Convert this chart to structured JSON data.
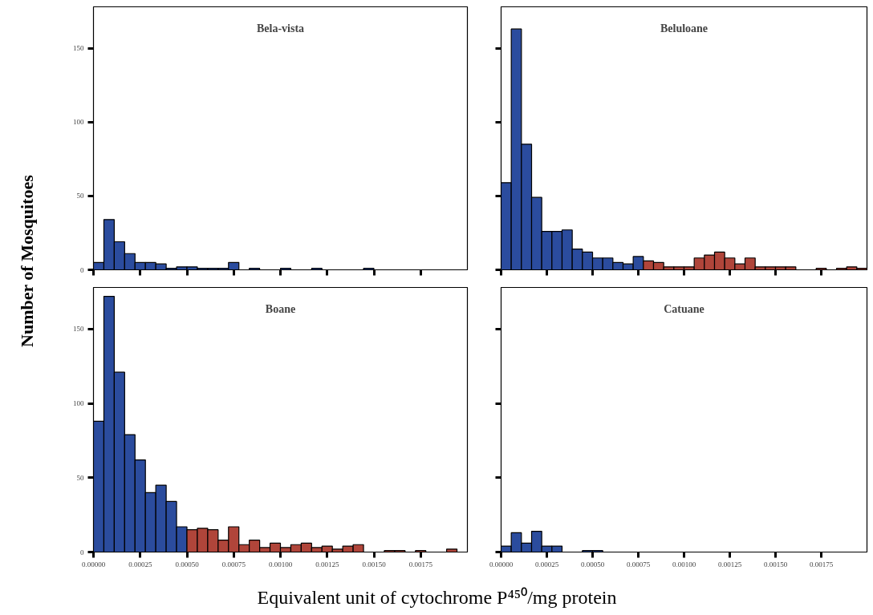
{
  "chart_data": [
    {
      "type": "histogram",
      "title": "Bela-vista",
      "ylabel": "Number of Mosquitoes",
      "tick_labels": "y",
      "bins": [
        0,
        5.56e-05,
        0.0001111,
        0.0001667,
        0.0002222,
        0.0002778,
        0.0003333,
        0.0003889,
        0.0004444,
        0.0005,
        0.0005556,
        0.0006111,
        0.0006667,
        0.0007222,
        0.0007778,
        0.0008333,
        0.0008889,
        0.0009444,
        0.001,
        0.0010556,
        0.0011111,
        0.0011667,
        0.0012222,
        0.0012778,
        0.0013333,
        0.0013889,
        0.0014444,
        0.0015,
        0.0015556,
        0.0016111,
        0.0016667,
        0.0017222,
        0.0017778,
        0.0018333,
        0.0018889,
        0.0019444,
        0.002
      ],
      "values": [
        5,
        34,
        19,
        11,
        5,
        5,
        4,
        1,
        2,
        2,
        1,
        1,
        1,
        5,
        0,
        1,
        0,
        0,
        1,
        0,
        0,
        1,
        0,
        0,
        0,
        0,
        1,
        0,
        0,
        0,
        0,
        0,
        0,
        0,
        0,
        0
      ],
      "colors": [
        "#2b4c9e",
        "#2b4c9e",
        "#2b4c9e",
        "#2b4c9e",
        "#2b4c9e",
        "#2b4c9e",
        "#2b4c9e",
        "#2b4c9e",
        "#2b4c9e",
        "#2b4c9e",
        "#2b4c9e",
        "#2b4c9e",
        "#2b4c9e",
        "#2b4c9e",
        "#2b4c9e",
        "#2b4c9e",
        "#2b4c9e",
        "#2b4c9e",
        "#2b4c9e",
        "#2b4c9e",
        "#2b4c9e",
        "#2b4c9e",
        "#2b4c9e",
        "#2b4c9e",
        "#2b4c9e",
        "#2b4c9e",
        "#2b4c9e",
        "#2b4c9e",
        "#2b4c9e",
        "#2b4c9e",
        "#2b4c9e",
        "#2b4c9e",
        "#2b4c9e",
        "#2b4c9e",
        "#2b4c9e",
        "#2b4c9e"
      ],
      "xlim": [
        0,
        0.002
      ],
      "ylim": [
        0,
        178
      ],
      "yticks": [
        0,
        50,
        100,
        150
      ],
      "xticks": [
        {
          "value": 0,
          "label": null
        },
        {
          "value": 0.00025,
          "label": null
        },
        {
          "value": 0.0005,
          "label": null
        },
        {
          "value": 0.00075,
          "label": null
        },
        {
          "value": 0.001,
          "label": null
        },
        {
          "value": 0.00125,
          "label": null
        },
        {
          "value": 0.0015,
          "label": null
        },
        {
          "value": 0.00175,
          "label": null
        }
      ]
    },
    {
      "type": "histogram",
      "title": "Beluloane",
      "tick_labels": false,
      "bins": [
        0,
        5.56e-05,
        0.0001111,
        0.0001667,
        0.0002222,
        0.0002778,
        0.0003333,
        0.0003889,
        0.0004444,
        0.0005,
        0.0005556,
        0.0006111,
        0.0006667,
        0.0007222,
        0.0007778,
        0.0008333,
        0.0008889,
        0.0009444,
        0.001,
        0.0010556,
        0.0011111,
        0.0011667,
        0.0012222,
        0.0012778,
        0.0013333,
        0.0013889,
        0.0014444,
        0.0015,
        0.0015556,
        0.0016111,
        0.0016667,
        0.0017222,
        0.0017778,
        0.0018333,
        0.0018889,
        0.0019444,
        0.002
      ],
      "values": [
        59,
        163,
        85,
        49,
        26,
        26,
        27,
        14,
        12,
        8,
        8,
        5,
        4,
        9,
        6,
        5,
        2,
        2,
        2,
        8,
        10,
        12,
        8,
        4,
        8,
        2,
        2,
        2,
        2,
        0,
        0,
        1,
        0,
        1,
        2,
        1
      ],
      "colors": [
        "#2b4c9e",
        "#2b4c9e",
        "#2b4c9e",
        "#2b4c9e",
        "#2b4c9e",
        "#2b4c9e",
        "#2b4c9e",
        "#2b4c9e",
        "#2b4c9e",
        "#2b4c9e",
        "#2b4c9e",
        "#2b4c9e",
        "#2b4c9e",
        "#2b4c9e",
        "#b0453a",
        "#b0453a",
        "#b0453a",
        "#b0453a",
        "#b0453a",
        "#b0453a",
        "#b0453a",
        "#b0453a",
        "#b0453a",
        "#b0453a",
        "#b0453a",
        "#b0453a",
        "#b0453a",
        "#b0453a",
        "#b0453a",
        "#b0453a",
        "#b0453a",
        "#b0453a",
        "#b0453a",
        "#b0453a",
        "#b0453a",
        "#b0453a"
      ],
      "xlim": [
        0,
        0.002
      ],
      "ylim": [
        0,
        178
      ],
      "yticks": [
        {
          "value": 0,
          "label": null
        },
        {
          "value": 50,
          "label": null
        },
        {
          "value": 100,
          "label": null
        },
        {
          "value": 150,
          "label": null
        }
      ],
      "xticks": [
        {
          "value": 0,
          "label": null
        },
        {
          "value": 0.00025,
          "label": null
        },
        {
          "value": 0.0005,
          "label": null
        },
        {
          "value": 0.00075,
          "label": null
        },
        {
          "value": 0.001,
          "label": null
        },
        {
          "value": 0.00125,
          "label": null
        },
        {
          "value": 0.0015,
          "label": null
        },
        {
          "value": 0.00175,
          "label": null
        }
      ]
    },
    {
      "type": "histogram",
      "title": "Boane",
      "xlabel": "Equivalent unit of cytochrome P⁴⁵⁰/mg protein",
      "bins": [
        0,
        5.56e-05,
        0.0001111,
        0.0001667,
        0.0002222,
        0.0002778,
        0.0003333,
        0.0003889,
        0.0004444,
        0.0005,
        0.0005556,
        0.0006111,
        0.0006667,
        0.0007222,
        0.0007778,
        0.0008333,
        0.0008889,
        0.0009444,
        0.001,
        0.0010556,
        0.0011111,
        0.0011667,
        0.0012222,
        0.0012778,
        0.0013333,
        0.0013889,
        0.0014444,
        0.0015,
        0.0015556,
        0.0016111,
        0.0016667,
        0.0017222,
        0.0017778,
        0.0018333,
        0.0018889,
        0.0019444,
        0.002
      ],
      "values": [
        88,
        172,
        121,
        79,
        62,
        40,
        45,
        34,
        17,
        15,
        16,
        15,
        8,
        17,
        5,
        8,
        3,
        6,
        3,
        5,
        6,
        3,
        4,
        2,
        4,
        5,
        0,
        0,
        1,
        1,
        0,
        1,
        0,
        0,
        2,
        0
      ],
      "colors": [
        "#2b4c9e",
        "#2b4c9e",
        "#2b4c9e",
        "#2b4c9e",
        "#2b4c9e",
        "#2b4c9e",
        "#2b4c9e",
        "#2b4c9e",
        "#2b4c9e",
        "#b0453a",
        "#b0453a",
        "#b0453a",
        "#b0453a",
        "#b0453a",
        "#b0453a",
        "#b0453a",
        "#b0453a",
        "#b0453a",
        "#b0453a",
        "#b0453a",
        "#b0453a",
        "#b0453a",
        "#b0453a",
        "#b0453a",
        "#b0453a",
        "#b0453a",
        "#b0453a",
        "#b0453a",
        "#b0453a",
        "#b0453a",
        "#b0453a",
        "#b0453a",
        "#b0453a",
        "#b0453a",
        "#b0453a",
        "#b0453a"
      ],
      "xlim": [
        0,
        0.002
      ],
      "ylim": [
        0,
        178
      ],
      "yticks": [
        0,
        50,
        100,
        150
      ],
      "xticks": [
        {
          "value": 0,
          "label": "0.00000"
        },
        {
          "value": 0.00025,
          "label": "0.00025"
        },
        {
          "value": 0.0005,
          "label": "0.00050"
        },
        {
          "value": 0.00075,
          "label": "0.00075"
        },
        {
          "value": 0.001,
          "label": "0.00100"
        },
        {
          "value": 0.00125,
          "label": "0.00125"
        },
        {
          "value": 0.0015,
          "label": "0.00150"
        },
        {
          "value": 0.00175,
          "label": "0.00175"
        }
      ]
    },
    {
      "type": "histogram",
      "title": "Catuane",
      "tick_labels": "x",
      "bins": [
        0,
        5.56e-05,
        0.0001111,
        0.0001667,
        0.0002222,
        0.0002778,
        0.0003333,
        0.0003889,
        0.0004444,
        0.0005,
        0.0005556,
        0.0006111,
        0.0006667,
        0.0007222,
        0.0007778,
        0.0008333,
        0.0008889,
        0.0009444,
        0.001,
        0.0010556,
        0.0011111,
        0.0011667,
        0.0012222,
        0.0012778,
        0.0013333,
        0.0013889,
        0.0014444,
        0.0015,
        0.0015556,
        0.0016111,
        0.0016667,
        0.0017222,
        0.0017778,
        0.0018333,
        0.0018889,
        0.0019444,
        0.002
      ],
      "values": [
        4,
        13,
        6,
        14,
        4,
        4,
        0,
        0,
        1,
        1,
        0,
        0,
        0,
        0,
        0,
        0,
        0,
        0,
        0,
        0,
        0,
        0,
        0,
        0,
        0,
        0,
        0,
        0,
        0,
        0,
        0,
        0,
        0,
        0,
        0,
        0
      ],
      "yticks": [
        {
          "value": 0,
          "label": null
        },
        {
          "value": 50,
          "label": null
        },
        {
          "value": 100,
          "label": null
        },
        {
          "value": 150,
          "label": null
        }
      ],
      "colors": [
        "#2b4c9e",
        "#2b4c9e",
        "#2b4c9e",
        "#2b4c9e",
        "#2b4c9e",
        "#2b4c9e",
        "#2b4c9e",
        "#2b4c9e",
        "#2b4c9e",
        "#2b4c9e",
        "#2b4c9e",
        "#2b4c9e",
        "#2b4c9e",
        "#2b4c9e",
        "#2b4c9e",
        "#2b4c9e",
        "#2b4c9e",
        "#2b4c9e",
        "#2b4c9e",
        "#2b4c9e",
        "#2b4c9e",
        "#2b4c9e",
        "#2b4c9e",
        "#2b4c9e",
        "#2b4c9e",
        "#2b4c9e",
        "#2b4c9e",
        "#2b4c9e",
        "#2b4c9e",
        "#2b4c9e",
        "#2b4c9e",
        "#2b4c9e",
        "#2b4c9e",
        "#2b4c9e",
        "#2b4c9e",
        "#2b4c9e"
      ],
      "xlim": [
        0,
        0.002
      ],
      "ylim": [
        0,
        178
      ],
      "xticks": [
        {
          "value": 0,
          "label": "0.00000"
        },
        {
          "value": 0.00025,
          "label": "0.00025"
        },
        {
          "value": 0.0005,
          "label": "0.00050"
        },
        {
          "value": 0.00075,
          "label": "0.00075"
        },
        {
          "value": 0.001,
          "label": "0.00100"
        },
        {
          "value": 0.00125,
          "label": "0.00125"
        },
        {
          "value": 0.0015,
          "label": "0.00150"
        },
        {
          "value": 0.00175,
          "label": "0.00175"
        }
      ]
    }
  ]
}
